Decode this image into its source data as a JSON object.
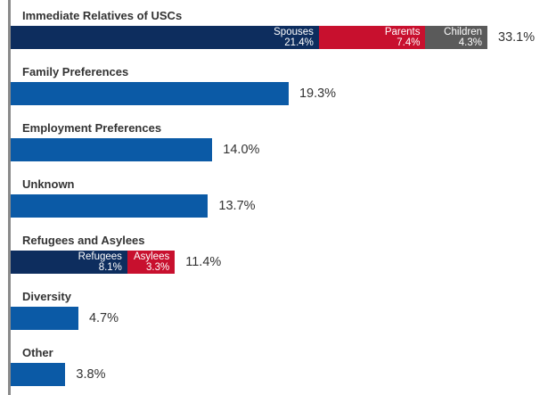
{
  "chart_data": {
    "type": "bar",
    "orientation": "horizontal",
    "stacked": true,
    "unit": "%",
    "xlim": [
      0,
      33.1
    ],
    "colors": {
      "primary": "#0b5aa6",
      "dark": "#0d2d5e",
      "red": "#c8102e",
      "gray": "#5a5a5a"
    },
    "categories": [
      {
        "label": "Immediate Relatives of USCs",
        "total": 33.1,
        "total_label": "33.1%",
        "segments": [
          {
            "name": "Spouses",
            "value": 21.4,
            "value_label": "21.4%",
            "color": "#0d2d5e"
          },
          {
            "name": "Parents",
            "value": 7.4,
            "value_label": "7.4%",
            "color": "#c8102e"
          },
          {
            "name": "Children",
            "value": 4.3,
            "value_label": "4.3%",
            "color": "#5a5a5a"
          }
        ]
      },
      {
        "label": "Family Preferences",
        "total": 19.3,
        "total_label": "19.3%",
        "segments": []
      },
      {
        "label": "Employment Preferences",
        "total": 14.0,
        "total_label": "14.0%",
        "segments": []
      },
      {
        "label": "Unknown",
        "total": 13.7,
        "total_label": "13.7%",
        "segments": []
      },
      {
        "label": "Refugees and Asylees",
        "total": 11.4,
        "total_label": "11.4%",
        "segments": [
          {
            "name": "Refugees",
            "value": 8.1,
            "value_label": "8.1%",
            "color": "#0d2d5e"
          },
          {
            "name": "Asylees",
            "value": 3.3,
            "value_label": "3.3%",
            "color": "#c8102e"
          }
        ]
      },
      {
        "label": "Diversity",
        "total": 4.7,
        "total_label": "4.7%",
        "segments": []
      },
      {
        "label": "Other",
        "total": 3.8,
        "total_label": "3.8%",
        "segments": []
      }
    ]
  }
}
